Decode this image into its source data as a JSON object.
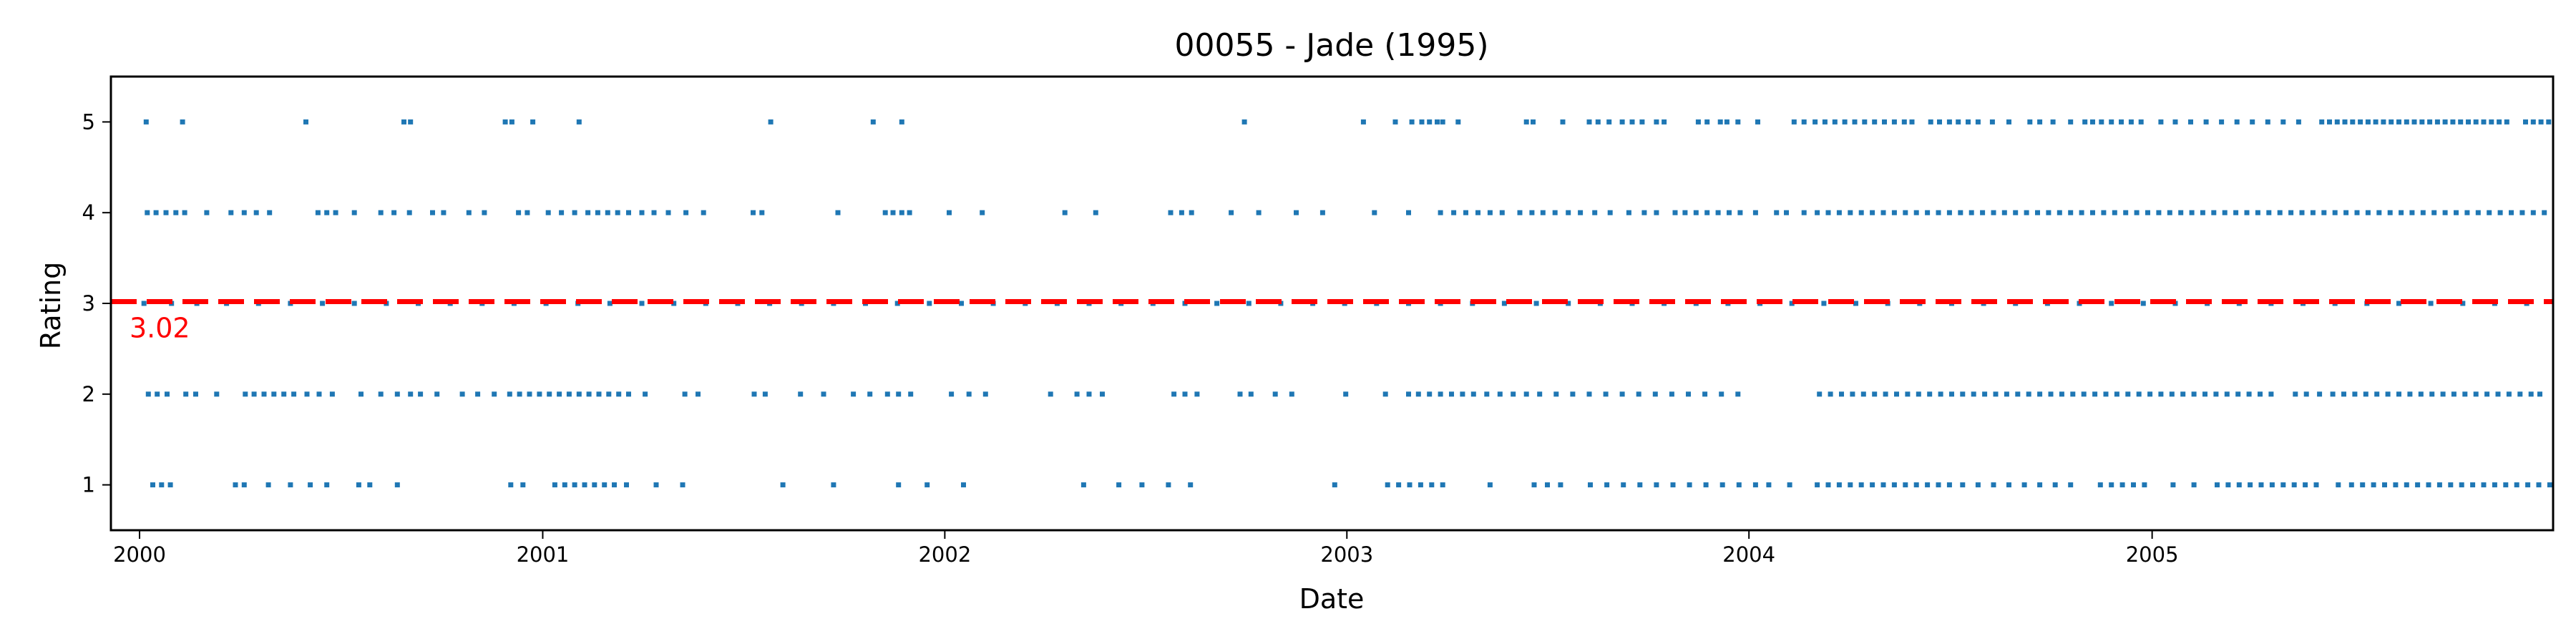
{
  "chart_data": {
    "type": "scatter",
    "title": "00055 - Jade (1995)",
    "xlabel": "Date",
    "ylabel": "Rating",
    "xlim": [
      "1999-12-06",
      "2005-12-31"
    ],
    "ylim": [
      0.5,
      5.5
    ],
    "x_ticks": [
      {
        "date": "2000-01-01",
        "label": "2000"
      },
      {
        "date": "2001-01-01",
        "label": "2001"
      },
      {
        "date": "2002-01-01",
        "label": "2002"
      },
      {
        "date": "2003-01-01",
        "label": "2003"
      },
      {
        "date": "2004-01-01",
        "label": "2004"
      },
      {
        "date": "2005-01-01",
        "label": "2005"
      }
    ],
    "y_ticks": [
      1,
      2,
      3,
      4,
      5
    ],
    "grid": false,
    "colors": {
      "points": "#1f77b4",
      "mean_line": "#ff0000",
      "axes": "#000000"
    },
    "mean": {
      "value": 3.02,
      "label": "3.02"
    },
    "series": [
      {
        "y": 5,
        "x": [
          "2000-01-07",
          "2000-02-09",
          "2000-05-31",
          "2000-08-28",
          "2000-09-03",
          "2000-11-28",
          "2000-12-04",
          "2000-12-23",
          "2001-02-03",
          "2001-07-27",
          "2001-10-28",
          "2001-11-23",
          "2002-09-30",
          "2003-01-16",
          "2003-02-14",
          "2003-03-01",
          "2003-03-10",
          "2003-03-17",
          "2003-03-24",
          "2003-03-29",
          "2003-04-12",
          "2003-06-13",
          "2003-06-19",
          "2003-07-16",
          "2003-08-09",
          "2003-08-17",
          "2003-08-27",
          "2003-09-08",
          "2003-09-17",
          "2003-09-26",
          "2003-10-09",
          "2003-10-16",
          "2003-11-16",
          "2003-11-24",
          "2003-12-06",
          "2003-12-12",
          "2003-12-22",
          "2004-01-09",
          "2004-02-11",
          "2004-02-20",
          "2004-03-01",
          "2004-03-10",
          "2004-03-19",
          "2004-03-28",
          "2004-04-06",
          "2004-04-15",
          "2004-04-24",
          "2004-05-03",
          "2004-05-12",
          "2004-05-21",
          "2004-05-28",
          "2004-06-14",
          "2004-06-22",
          "2004-07-01",
          "2004-07-09",
          "2004-07-18",
          "2004-07-27",
          "2004-08-09",
          "2004-08-24",
          "2004-09-12",
          "2004-09-21",
          "2004-10-03",
          "2004-10-19",
          "2004-11-01",
          "2004-11-08",
          "2004-11-16",
          "2004-11-25",
          "2004-12-04",
          "2004-12-13",
          "2004-12-22",
          "2005-01-09",
          "2005-01-22",
          "2005-02-05",
          "2005-02-19",
          "2005-03-05",
          "2005-03-19",
          "2005-04-02",
          "2005-04-16",
          "2005-04-30",
          "2005-05-14",
          "2005-06-04",
          "2005-06-11",
          "2005-06-18",
          "2005-06-25",
          "2005-07-02",
          "2005-07-09",
          "2005-07-16",
          "2005-07-23",
          "2005-07-30",
          "2005-08-06",
          "2005-08-13",
          "2005-08-20",
          "2005-08-27",
          "2005-09-03",
          "2005-09-10",
          "2005-09-17",
          "2005-09-24",
          "2005-10-01",
          "2005-10-08",
          "2005-10-15",
          "2005-10-22",
          "2005-10-29",
          "2005-11-05",
          "2005-11-12",
          "2005-11-19",
          "2005-12-06",
          "2005-12-13",
          "2005-12-20",
          "2005-12-27"
        ]
      },
      {
        "y": 4,
        "x": [
          "2000-01-08",
          "2000-01-16",
          "2000-01-25",
          "2000-02-03",
          "2000-02-11",
          "2000-03-02",
          "2000-03-24",
          "2000-04-05",
          "2000-04-16",
          "2000-04-28",
          "2000-06-11",
          "2000-06-19",
          "2000-06-27",
          "2000-07-14",
          "2000-08-07",
          "2000-08-19",
          "2000-09-02",
          "2000-09-23",
          "2000-10-03",
          "2000-10-26",
          "2000-11-09",
          "2000-12-10",
          "2000-12-18",
          "2001-01-06",
          "2001-01-18",
          "2001-01-30",
          "2001-02-11",
          "2001-02-20",
          "2001-03-01",
          "2001-03-10",
          "2001-03-20",
          "2001-04-01",
          "2001-04-12",
          "2001-04-25",
          "2001-05-11",
          "2001-05-27",
          "2001-07-11",
          "2001-07-19",
          "2001-09-26",
          "2001-11-08",
          "2001-11-15",
          "2001-11-23",
          "2001-11-30",
          "2002-01-05",
          "2002-02-04",
          "2002-04-20",
          "2002-05-18",
          "2002-07-25",
          "2002-08-04",
          "2002-08-13",
          "2002-09-18",
          "2002-10-13",
          "2002-11-16",
          "2002-12-10",
          "2003-01-26",
          "2003-02-26",
          "2003-03-27",
          "2003-04-08",
          "2003-04-19",
          "2003-04-30",
          "2003-05-11",
          "2003-05-22",
          "2003-06-07",
          "2003-06-18",
          "2003-06-28",
          "2003-07-09",
          "2003-07-21",
          "2003-08-01",
          "2003-08-14",
          "2003-08-28",
          "2003-09-14",
          "2003-09-28",
          "2003-10-09",
          "2003-10-26",
          "2003-11-04",
          "2003-11-14",
          "2003-11-24",
          "2003-12-04",
          "2003-12-14",
          "2003-12-24",
          "2004-01-07",
          "2004-01-26",
          "2004-02-04",
          "2004-02-20",
          "2004-03-03",
          "2004-03-13",
          "2004-03-23",
          "2004-04-02",
          "2004-04-12",
          "2004-04-22",
          "2004-05-02",
          "2004-05-12",
          "2004-05-22",
          "2004-06-01",
          "2004-06-11",
          "2004-06-21",
          "2004-07-01",
          "2004-07-11",
          "2004-07-21",
          "2004-07-31",
          "2004-08-10",
          "2004-08-20",
          "2004-08-30",
          "2004-09-09",
          "2004-09-19",
          "2004-09-29",
          "2004-10-09",
          "2004-10-19",
          "2004-10-29",
          "2004-11-08",
          "2004-11-18",
          "2004-11-28",
          "2004-12-08",
          "2004-12-18",
          "2004-12-28",
          "2005-01-07",
          "2005-01-17",
          "2005-01-27",
          "2005-02-06",
          "2005-02-16",
          "2005-02-26",
          "2005-03-08",
          "2005-03-18",
          "2005-03-28",
          "2005-04-07",
          "2005-04-17",
          "2005-04-27",
          "2005-05-07",
          "2005-05-17",
          "2005-05-27",
          "2005-06-06",
          "2005-06-16",
          "2005-06-26",
          "2005-07-06",
          "2005-07-16",
          "2005-07-26",
          "2005-08-05",
          "2005-08-15",
          "2005-08-25",
          "2005-09-04",
          "2005-09-14",
          "2005-09-24",
          "2005-10-04",
          "2005-10-14",
          "2005-10-24",
          "2005-11-03",
          "2005-11-13",
          "2005-11-23",
          "2005-12-03",
          "2005-12-13",
          "2005-12-23"
        ]
      },
      {
        "y": 3,
        "x": [
          "2000-01-05",
          "2000-01-30",
          "2000-02-22",
          "2000-03-20",
          "2000-04-18",
          "2000-05-17",
          "2000-06-15",
          "2000-07-14",
          "2000-08-12",
          "2000-09-10",
          "2000-10-09",
          "2000-11-07",
          "2000-12-06",
          "2001-01-04",
          "2001-02-02",
          "2001-03-03",
          "2001-04-01",
          "2001-04-30",
          "2001-05-29",
          "2001-06-27",
          "2001-07-26",
          "2001-08-24",
          "2001-09-22",
          "2001-10-21",
          "2001-11-19",
          "2001-12-18",
          "2002-01-16",
          "2002-02-14",
          "2002-03-15",
          "2002-04-13",
          "2002-05-12",
          "2002-06-10",
          "2002-07-09",
          "2002-08-07",
          "2002-09-05",
          "2002-10-04",
          "2002-11-02",
          "2002-12-01",
          "2002-12-30",
          "2003-01-28",
          "2003-02-26",
          "2003-03-27",
          "2003-04-25",
          "2003-05-24",
          "2003-06-22",
          "2003-07-21",
          "2003-08-19",
          "2003-09-17",
          "2003-10-16",
          "2003-11-14",
          "2003-12-13",
          "2004-01-11",
          "2004-02-09",
          "2004-03-09",
          "2004-04-07",
          "2004-05-06",
          "2004-06-04",
          "2004-07-03",
          "2004-08-01",
          "2004-08-30",
          "2004-09-28",
          "2004-10-27",
          "2004-11-25",
          "2004-12-24",
          "2005-01-22",
          "2005-02-20",
          "2005-03-21",
          "2005-04-19",
          "2005-05-18",
          "2005-06-16",
          "2005-07-15",
          "2005-08-13",
          "2005-09-11",
          "2005-10-10",
          "2005-11-08",
          "2005-12-07"
        ]
      },
      {
        "y": 2,
        "x": [
          "2000-01-09",
          "2000-01-17",
          "2000-01-26",
          "2000-02-12",
          "2000-02-21",
          "2000-03-11",
          "2000-04-06",
          "2000-04-14",
          "2000-04-23",
          "2000-05-02",
          "2000-05-11",
          "2000-05-20",
          "2000-06-01",
          "2000-06-12",
          "2000-06-24",
          "2000-07-20",
          "2000-08-07",
          "2000-08-22",
          "2000-09-03",
          "2000-09-12",
          "2000-09-27",
          "2000-10-20",
          "2000-11-03",
          "2000-11-18",
          "2000-12-02",
          "2000-12-11",
          "2000-12-20",
          "2000-12-29",
          "2001-01-07",
          "2001-01-16",
          "2001-01-25",
          "2001-02-03",
          "2001-02-12",
          "2001-02-21",
          "2001-03-02",
          "2001-03-11",
          "2001-03-20",
          "2001-04-04",
          "2001-05-10",
          "2001-05-22",
          "2001-07-12",
          "2001-07-22",
          "2001-08-23",
          "2001-09-13",
          "2001-10-10",
          "2001-10-25",
          "2001-11-10",
          "2001-11-20",
          "2001-12-01",
          "2002-01-07",
          "2002-01-23",
          "2002-02-07",
          "2002-04-07",
          "2002-05-01",
          "2002-05-12",
          "2002-05-24",
          "2002-07-28",
          "2002-08-07",
          "2002-08-18",
          "2002-09-26",
          "2002-10-06",
          "2002-10-28",
          "2002-11-12",
          "2002-12-31",
          "2003-02-05",
          "2003-02-26",
          "2003-03-07",
          "2003-03-17",
          "2003-03-27",
          "2003-04-06",
          "2003-04-16",
          "2003-04-26",
          "2003-05-08",
          "2003-05-20",
          "2003-06-01",
          "2003-06-13",
          "2003-06-25",
          "2003-07-10",
          "2003-07-25",
          "2003-08-09",
          "2003-08-24",
          "2003-09-08",
          "2003-09-23",
          "2003-10-08",
          "2003-10-23",
          "2003-11-07",
          "2003-11-22",
          "2003-12-07",
          "2003-12-22",
          "2004-03-05",
          "2004-03-15",
          "2004-03-25",
          "2004-04-04",
          "2004-04-14",
          "2004-04-24",
          "2004-05-04",
          "2004-05-14",
          "2004-05-24",
          "2004-06-03",
          "2004-06-13",
          "2004-06-23",
          "2004-07-03",
          "2004-07-13",
          "2004-07-23",
          "2004-08-02",
          "2004-08-12",
          "2004-08-22",
          "2004-09-01",
          "2004-09-11",
          "2004-09-21",
          "2004-10-01",
          "2004-10-11",
          "2004-10-21",
          "2004-10-31",
          "2004-11-10",
          "2004-11-20",
          "2004-11-30",
          "2004-12-10",
          "2004-12-20",
          "2004-12-30",
          "2005-01-09",
          "2005-01-19",
          "2005-01-29",
          "2005-02-08",
          "2005-02-18",
          "2005-02-28",
          "2005-03-10",
          "2005-03-20",
          "2005-03-30",
          "2005-04-09",
          "2005-04-19",
          "2005-05-11",
          "2005-05-21",
          "2005-06-02",
          "2005-06-14",
          "2005-06-24",
          "2005-07-04",
          "2005-07-14",
          "2005-07-24",
          "2005-08-03",
          "2005-08-13",
          "2005-08-23",
          "2005-09-02",
          "2005-09-12",
          "2005-09-22",
          "2005-10-02",
          "2005-10-12",
          "2005-10-22",
          "2005-11-01",
          "2005-11-11",
          "2005-11-21",
          "2005-12-01",
          "2005-12-11",
          "2005-12-19"
        ]
      },
      {
        "y": 1,
        "x": [
          "2000-01-13",
          "2000-01-21",
          "2000-01-29",
          "2000-03-28",
          "2000-04-05",
          "2000-04-27",
          "2000-05-17",
          "2000-06-04",
          "2000-06-19",
          "2000-07-18",
          "2000-07-28",
          "2000-08-22",
          "2000-12-03",
          "2000-12-14",
          "2001-01-12",
          "2001-01-21",
          "2001-01-30",
          "2001-02-08",
          "2001-02-17",
          "2001-02-26",
          "2001-03-07",
          "2001-03-18",
          "2001-04-14",
          "2001-05-08",
          "2001-08-07",
          "2001-09-22",
          "2001-11-20",
          "2001-12-16",
          "2002-01-18",
          "2002-05-07",
          "2002-06-08",
          "2002-06-29",
          "2002-07-23",
          "2002-08-12",
          "2002-12-21",
          "2003-02-07",
          "2003-02-17",
          "2003-02-27",
          "2003-03-09",
          "2003-03-19",
          "2003-03-29",
          "2003-05-11",
          "2003-06-20",
          "2003-07-02",
          "2003-07-14",
          "2003-08-10",
          "2003-08-25",
          "2003-09-09",
          "2003-09-24",
          "2003-10-09",
          "2003-10-24",
          "2003-11-08",
          "2003-11-23",
          "2003-12-08",
          "2003-12-23",
          "2004-01-07",
          "2004-01-19",
          "2004-02-07",
          "2004-03-03",
          "2004-03-13",
          "2004-03-23",
          "2004-04-02",
          "2004-04-12",
          "2004-04-22",
          "2004-05-02",
          "2004-05-12",
          "2004-05-22",
          "2004-06-01",
          "2004-06-11",
          "2004-06-21",
          "2004-07-01",
          "2004-07-13",
          "2004-07-27",
          "2004-08-10",
          "2004-08-24",
          "2004-09-07",
          "2004-09-21",
          "2004-10-05",
          "2004-10-19",
          "2004-11-15",
          "2004-11-25",
          "2004-12-05",
          "2004-12-15",
          "2004-12-25",
          "2005-01-20",
          "2005-02-08",
          "2005-03-01",
          "2005-03-11",
          "2005-03-21",
          "2005-03-31",
          "2005-04-10",
          "2005-04-20",
          "2005-04-30",
          "2005-05-10",
          "2005-05-20",
          "2005-05-30",
          "2005-06-19",
          "2005-07-01",
          "2005-07-11",
          "2005-07-21",
          "2005-07-31",
          "2005-08-10",
          "2005-08-20",
          "2005-08-30",
          "2005-09-09",
          "2005-09-19",
          "2005-09-29",
          "2005-10-09",
          "2005-10-19",
          "2005-10-29",
          "2005-11-08",
          "2005-11-18",
          "2005-11-28",
          "2005-12-08",
          "2005-12-18",
          "2005-12-28"
        ]
      }
    ]
  }
}
